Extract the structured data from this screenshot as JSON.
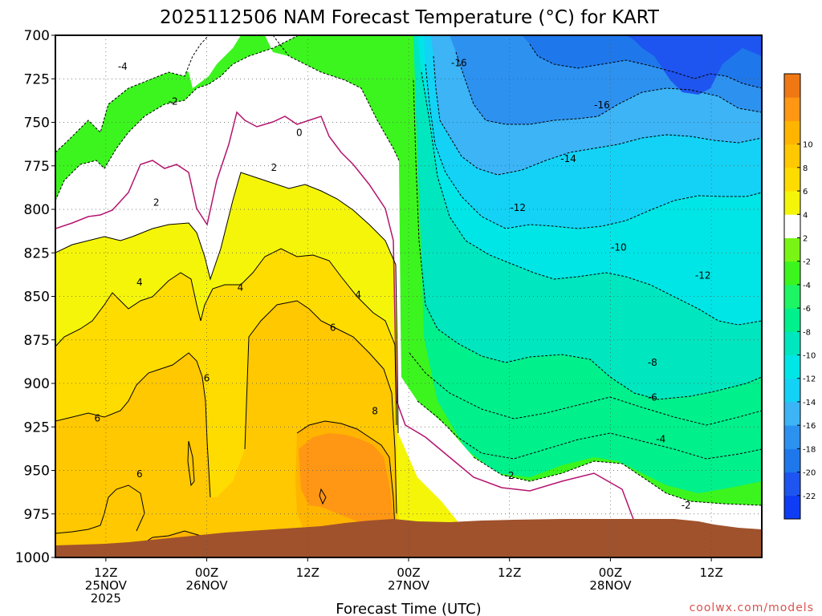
{
  "chart_data": {
    "type": "heatmap",
    "title": "2025112506 NAM Forecast Temperature (°C) for KART",
    "xlabel": "Forecast Time (UTC)",
    "ylabel": "",
    "y_reversed": true,
    "ylim": [
      1000,
      700
    ],
    "y_ticks": [
      "700",
      "725",
      "750",
      "775",
      "800",
      "825",
      "850",
      "875",
      "900",
      "925",
      "950",
      "975",
      "1000"
    ],
    "x_ticks": [
      {
        "label": "12Z",
        "date": "25NOV",
        "year": "2025",
        "t": 12
      },
      {
        "label": "00Z",
        "date": "26NOV",
        "year": "",
        "t": 24
      },
      {
        "label": "12Z",
        "date": "",
        "year": "",
        "t": 36
      },
      {
        "label": "00Z",
        "date": "27NOV",
        "year": "",
        "t": 48
      },
      {
        "label": "12Z",
        "date": "",
        "year": "",
        "t": 60
      },
      {
        "label": "00Z",
        "date": "28NOV",
        "year": "",
        "t": 72
      },
      {
        "label": "12Z",
        "date": "",
        "year": "",
        "t": 84
      }
    ],
    "xlim": [
      6,
      90
    ],
    "grid": true,
    "colorbar": {
      "levels": [
        -24,
        -22,
        -20,
        -18,
        -16,
        -14,
        -12,
        -10,
        -8,
        -6,
        -4,
        -2,
        2,
        4,
        6,
        8,
        10,
        12
      ],
      "tick_labels": [
        "-22",
        "-20",
        "-18",
        "-16",
        "-14",
        "-12",
        "-10",
        "-8",
        "-6",
        "-4",
        "-2",
        "2",
        "4",
        "6",
        "8",
        "10"
      ],
      "colors": [
        "#0f3cf5",
        "#1e55f0",
        "#1e78eb",
        "#2d91f0",
        "#3cb4f5",
        "#14d2f5",
        "#00e6e6",
        "#00e6be",
        "#00f08c",
        "#1ef564",
        "#3cf51e",
        "#78f514",
        "#ffffff",
        "#f5f50a",
        "#ffdc00",
        "#ffc800",
        "#ffb400",
        "#ff9614",
        "#f07814"
      ]
    },
    "contour_labels": [
      {
        "text": "-4",
        "t": 14,
        "p": 718
      },
      {
        "text": "-2",
        "t": 20,
        "p": 738
      },
      {
        "text": "0",
        "t": 35,
        "p": 756
      },
      {
        "text": "2",
        "t": 32,
        "p": 776
      },
      {
        "text": "2",
        "t": 18,
        "p": 796
      },
      {
        "text": "4",
        "t": 16,
        "p": 842
      },
      {
        "text": "4",
        "t": 28,
        "p": 845
      },
      {
        "text": "4",
        "t": 42,
        "p": 849
      },
      {
        "text": "6",
        "t": 39,
        "p": 868
      },
      {
        "text": "6",
        "t": 24,
        "p": 897
      },
      {
        "text": "6",
        "t": 11,
        "p": 920
      },
      {
        "text": "6",
        "t": 16,
        "p": 952
      },
      {
        "text": "8",
        "t": 44,
        "p": 916
      },
      {
        "text": "-16",
        "t": 54,
        "p": 716
      },
      {
        "text": "-16",
        "t": 71,
        "p": 740
      },
      {
        "text": "-14",
        "t": 67,
        "p": 771
      },
      {
        "text": "-12",
        "t": 61,
        "p": 799
      },
      {
        "text": "-10",
        "t": 73,
        "p": 822
      },
      {
        "text": "-12",
        "t": 83,
        "p": 838
      },
      {
        "text": "-8",
        "t": 77,
        "p": 888
      },
      {
        "text": "-6",
        "t": 77,
        "p": 908
      },
      {
        "text": "-4",
        "t": 78,
        "p": 932
      },
      {
        "text": "-2",
        "t": 60,
        "p": 953
      },
      {
        "text": "-2",
        "t": 81,
        "p": 970
      }
    ]
  },
  "credit": "coolwx.com/models"
}
